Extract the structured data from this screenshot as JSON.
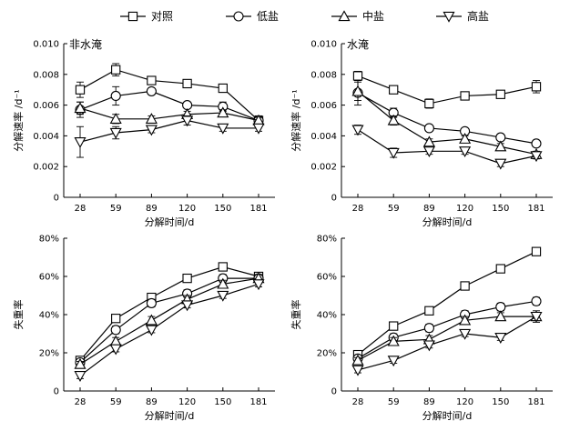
{
  "legend": [
    {
      "name": "对照",
      "marker": "square"
    },
    {
      "name": "低盐",
      "marker": "circle"
    },
    {
      "name": "中盐",
      "marker": "triangle-up"
    },
    {
      "name": "高盐",
      "marker": "triangle-down"
    }
  ],
  "chart_data": [
    {
      "type": "line",
      "title": "非水淹",
      "xlabel": "分解时间/d",
      "ylabel": "分解速率 /d⁻¹",
      "categories": [
        "28",
        "59",
        "89",
        "120",
        "150",
        "181"
      ],
      "ylim": [
        0,
        0.01
      ],
      "yticks": [
        0,
        0.002,
        0.004,
        0.006,
        0.008,
        0.01
      ],
      "ytick_labels": [
        "0",
        "0.002",
        "0.004",
        "0.006",
        "0.008",
        "0.010"
      ],
      "series": [
        {
          "name": "对照",
          "marker": "square",
          "values": [
            0.007,
            0.0083,
            0.0076,
            0.0074,
            0.0071,
            0.005
          ],
          "errors": [
            0.0005,
            0.0004,
            0.0002,
            0.0002,
            0.0002,
            0.0003
          ]
        },
        {
          "name": "低盐",
          "marker": "circle",
          "values": [
            0.0057,
            0.0066,
            0.0069,
            0.006,
            0.0059,
            0.005
          ],
          "errors": [
            0.0005,
            0.0006,
            0.0002,
            0.0002,
            0.0003,
            0.0003
          ]
        },
        {
          "name": "中盐",
          "marker": "triangle-up",
          "values": [
            0.0058,
            0.0051,
            0.0051,
            0.0054,
            0.0055,
            0.005
          ],
          "errors": [
            0.0004,
            0.0003,
            0.0002,
            0.0002,
            0.0002,
            0.0002
          ]
        },
        {
          "name": "高盐",
          "marker": "triangle-down",
          "values": [
            0.0036,
            0.0042,
            0.0044,
            0.005,
            0.0045,
            0.0045
          ],
          "errors": [
            0.001,
            0.0004,
            0.0002,
            0.0003,
            0.0002,
            0.0002
          ]
        }
      ]
    },
    {
      "type": "line",
      "title": "水淹",
      "xlabel": "分解时间/d",
      "ylabel": "分解速率 /d⁻¹",
      "categories": [
        "28",
        "59",
        "89",
        "120",
        "150",
        "181"
      ],
      "ylim": [
        0,
        0.01
      ],
      "yticks": [
        0,
        0.002,
        0.004,
        0.006,
        0.008,
        0.01
      ],
      "ytick_labels": [
        "0",
        "0.002",
        "0.004",
        "0.006",
        "0.008",
        "0.010"
      ],
      "series": [
        {
          "name": "对照",
          "marker": "square",
          "values": [
            0.0079,
            0.007,
            0.0061,
            0.0066,
            0.0067,
            0.0072
          ],
          "errors": [
            0.0003,
            0.0002,
            0.0003,
            0.0002,
            0.0002,
            0.0004
          ]
        },
        {
          "name": "低盐",
          "marker": "circle",
          "values": [
            0.0068,
            0.0055,
            0.0045,
            0.0043,
            0.0039,
            0.0035
          ],
          "errors": [
            0.0008,
            0.0003,
            0.0002,
            0.0002,
            0.0002,
            0.0002
          ]
        },
        {
          "name": "中盐",
          "marker": "triangle-up",
          "values": [
            0.0069,
            0.005,
            0.0036,
            0.0038,
            0.0033,
            0.0028
          ],
          "errors": [
            0.0006,
            0.0003,
            0.0002,
            0.0002,
            0.0002,
            0.0002
          ]
        },
        {
          "name": "高盐",
          "marker": "triangle-down",
          "values": [
            0.0044,
            0.0029,
            0.003,
            0.003,
            0.0022,
            0.0027
          ],
          "errors": [
            0.0003,
            0.0003,
            0.0002,
            0.0002,
            0.0002,
            0.0002
          ]
        }
      ]
    },
    {
      "type": "line",
      "title": "",
      "xlabel": "分解时间/d",
      "ylabel": "失重率",
      "categories": [
        "28",
        "59",
        "89",
        "120",
        "150",
        "181"
      ],
      "ylim": [
        0,
        80
      ],
      "yticks": [
        0,
        20,
        40,
        60,
        80
      ],
      "ytick_labels": [
        "0",
        "20%",
        "40%",
        "60%",
        "80%"
      ],
      "series": [
        {
          "name": "对照",
          "marker": "square",
          "values": [
            16,
            38,
            49,
            59,
            65,
            60
          ],
          "errors": [
            1.5,
            1.5,
            1.5,
            1.5,
            1.5,
            1.5
          ]
        },
        {
          "name": "低盐",
          "marker": "circle",
          "values": [
            15,
            32,
            46,
            51,
            59,
            59
          ],
          "errors": [
            1.5,
            2,
            2,
            2,
            2,
            2
          ]
        },
        {
          "name": "中盐",
          "marker": "triangle-up",
          "values": [
            14,
            26,
            37,
            48,
            56,
            59
          ],
          "errors": [
            1.5,
            2,
            2,
            2,
            2,
            2
          ]
        },
        {
          "name": "高盐",
          "marker": "triangle-down",
          "values": [
            8,
            22,
            32,
            45,
            50,
            56
          ],
          "errors": [
            1.5,
            1.5,
            1.5,
            1.5,
            1.5,
            1.5
          ]
        }
      ]
    },
    {
      "type": "line",
      "title": "",
      "xlabel": "分解时间/d",
      "ylabel": "失重率",
      "categories": [
        "28",
        "59",
        "89",
        "120",
        "150",
        "181"
      ],
      "ylim": [
        0,
        80
      ],
      "yticks": [
        0,
        20,
        40,
        60,
        80
      ],
      "ytick_labels": [
        "0",
        "20%",
        "40%",
        "60%",
        "80%"
      ],
      "series": [
        {
          "name": "对照",
          "marker": "square",
          "values": [
            19,
            34,
            42,
            55,
            64,
            73
          ],
          "errors": [
            1.5,
            1.5,
            1.5,
            1.5,
            1.5,
            1.5
          ]
        },
        {
          "name": "低盐",
          "marker": "circle",
          "values": [
            17,
            28,
            33,
            40,
            44,
            47
          ],
          "errors": [
            1.5,
            2,
            2,
            2,
            2,
            2
          ]
        },
        {
          "name": "中盐",
          "marker": "triangle-up",
          "values": [
            16,
            26,
            27,
            37,
            39,
            39
          ],
          "errors": [
            1.5,
            2,
            2,
            2,
            2,
            2
          ]
        },
        {
          "name": "高盐",
          "marker": "triangle-down",
          "values": [
            11,
            16,
            24,
            30,
            28,
            39
          ],
          "errors": [
            1.5,
            1.5,
            1.5,
            1.5,
            1.5,
            3
          ]
        }
      ]
    }
  ]
}
